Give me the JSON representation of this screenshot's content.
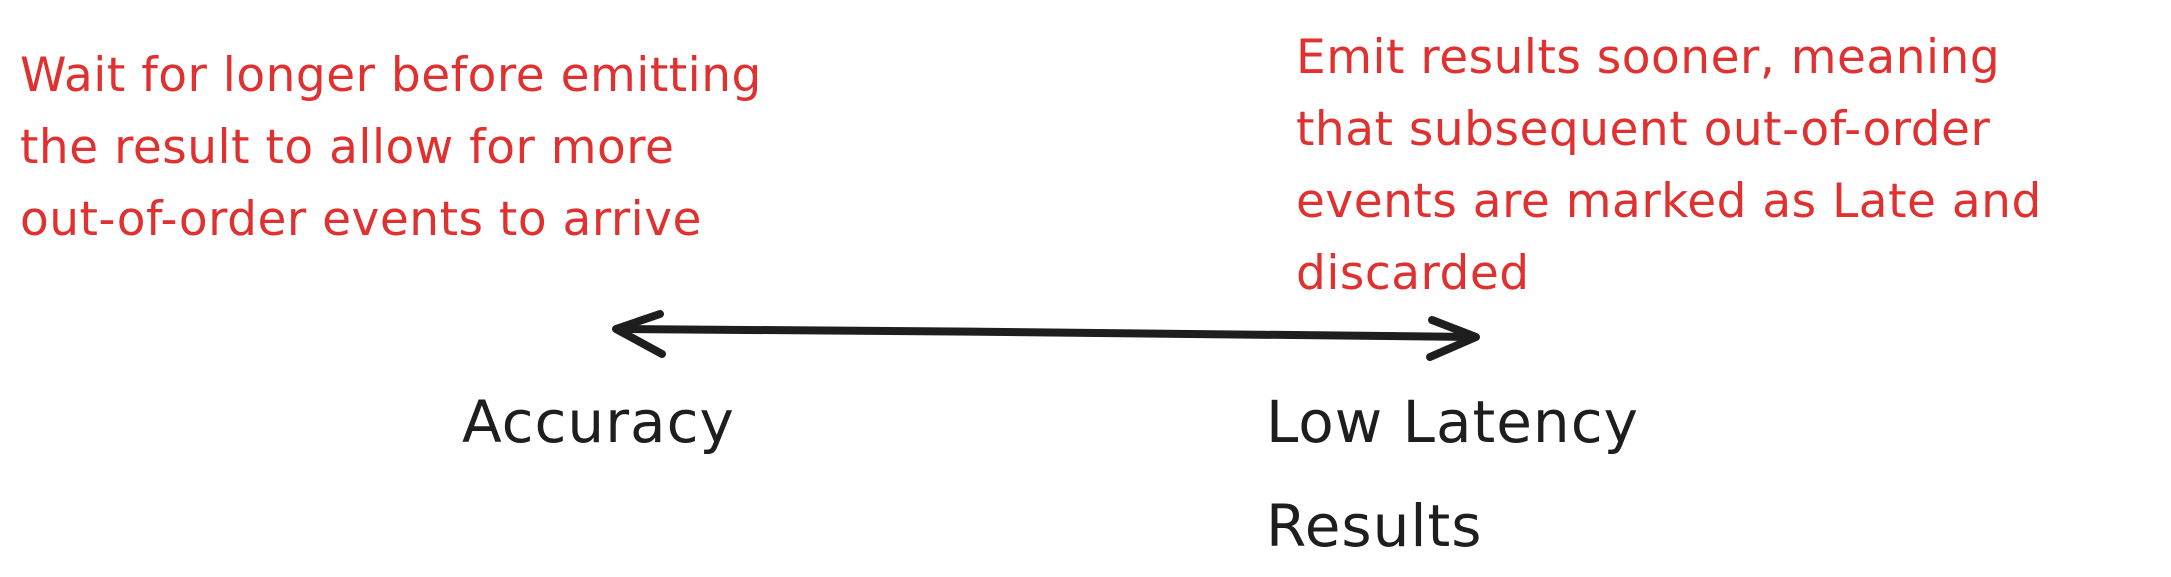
{
  "left_note": {
    "lines": [
      "Wait for longer before emitting",
      "the result to allow for more",
      "out-of-order events to arrive"
    ]
  },
  "right_note": {
    "lines": [
      "Emit results sooner, meaning",
      "that subsequent out-of-order",
      "events are marked as Late and",
      "discarded"
    ]
  },
  "left_label": {
    "lines": [
      "Accuracy"
    ]
  },
  "right_label": {
    "lines": [
      "Low Latency",
      "Results"
    ]
  },
  "colors": {
    "note_text": "#e03131",
    "label_text": "#1e1e1e",
    "arrow": "#1e1e1e"
  }
}
